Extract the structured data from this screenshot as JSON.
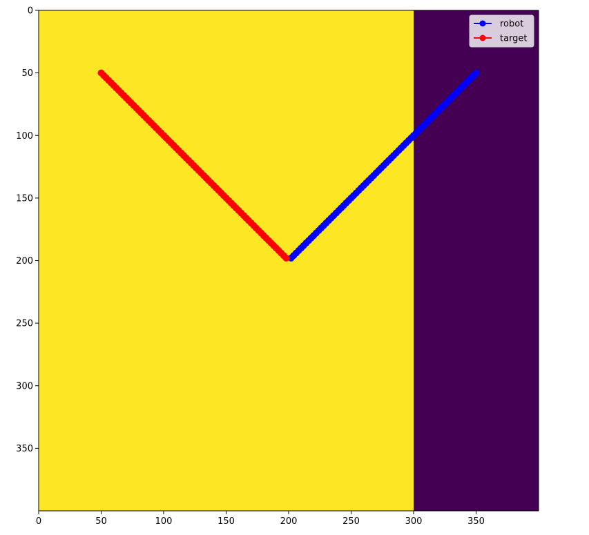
{
  "chart_data": {
    "type": "line",
    "title": "",
    "xlabel": "",
    "ylabel": "",
    "xlim": [
      0,
      400
    ],
    "ylim": [
      400,
      0
    ],
    "y_axis_inverted": true,
    "grid": false,
    "background": {
      "type": "heatmap",
      "regions": [
        {
          "x_range": [
            0,
            300
          ],
          "color": "#fde725"
        },
        {
          "x_range": [
            300,
            400
          ],
          "color": "#440154"
        }
      ]
    },
    "x_ticks": [
      0,
      50,
      100,
      150,
      200,
      250,
      300,
      350
    ],
    "y_ticks": [
      0,
      50,
      100,
      150,
      200,
      250,
      300,
      350
    ],
    "x_tick_labels": [
      "0",
      "50",
      "100",
      "150",
      "200",
      "250",
      "300",
      "350"
    ],
    "y_tick_labels": [
      "0",
      "50",
      "100",
      "150",
      "200",
      "250",
      "300",
      "350"
    ],
    "legend": {
      "position": "upper-right",
      "entries": [
        "robot",
        "target"
      ]
    },
    "series": [
      {
        "name": "robot",
        "color": "#0000ff",
        "marker": "circle",
        "start": [
          350,
          50
        ],
        "end": [
          202,
          198
        ],
        "point_count": 75
      },
      {
        "name": "target",
        "color": "#ff0000",
        "marker": "circle",
        "start": [
          50,
          50
        ],
        "end": [
          198,
          198
        ],
        "point_count": 75
      }
    ]
  }
}
